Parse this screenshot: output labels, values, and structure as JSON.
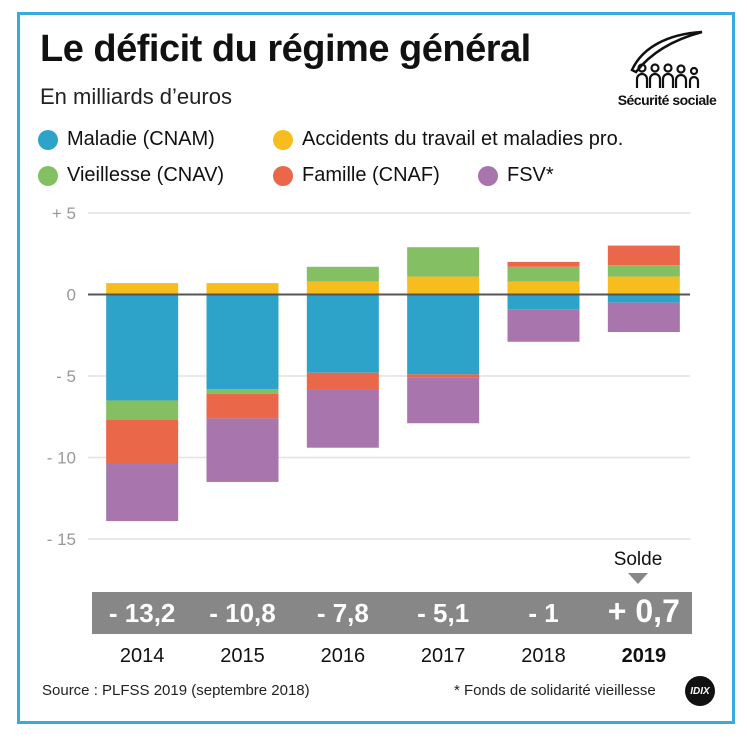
{
  "header": {
    "title": "Le déficit du régime général",
    "subtitle": "En milliards d’euros",
    "logo_label": "Sécurité sociale",
    "logo_icon": "securite-sociale-logo-icon"
  },
  "colors": {
    "frame": "#3aa9dc",
    "Maladie (CNAM)": "#2ea3c9",
    "Accidents du travail et maladies pro.": "#f7bd1f",
    "Vieillesse (CNAV)": "#84bf64",
    "Famille (CNAF)": "#ea6749",
    "FSV*": "#a875ad"
  },
  "chart_data": {
    "type": "bar",
    "stacked": true,
    "title": "Le déficit du régime général",
    "subtitle": "En milliards d’euros",
    "xlabel": "",
    "ylabel": "",
    "categories": [
      "2014",
      "2015",
      "2016",
      "2017",
      "2018",
      "2019"
    ],
    "ylim": [
      -15,
      5
    ],
    "yticks": [
      5,
      0,
      -5,
      -10,
      -15
    ],
    "ytick_labels": [
      "+ 5",
      "0",
      "- 5",
      "- 10",
      "- 15"
    ],
    "grid": true,
    "legend_position": "top",
    "series": [
      {
        "name": "Maladie (CNAM)",
        "color": "#2ea3c9",
        "values": [
          -6.5,
          -5.8,
          -4.8,
          -4.9,
          -0.9,
          -0.5
        ]
      },
      {
        "name": "Accidents du travail et maladies pro.",
        "color": "#f7bd1f",
        "values": [
          0.7,
          0.7,
          0.8,
          1.1,
          0.8,
          1.1
        ]
      },
      {
        "name": "Vieillesse (CNAV)",
        "color": "#84bf64",
        "values": [
          -1.2,
          -0.3,
          0.9,
          1.8,
          0.9,
          0.7
        ]
      },
      {
        "name": "Famille (CNAF)",
        "color": "#ea6749",
        "values": [
          -2.7,
          -1.5,
          -1.0,
          -0.2,
          0.3,
          1.2
        ]
      },
      {
        "name": "FSV*",
        "color": "#a875ad",
        "values": [
          -3.5,
          -3.9,
          -3.6,
          -2.8,
          -2.0,
          -1.8
        ]
      }
    ],
    "solde_label": "Solde",
    "solde": [
      {
        "year": "2014",
        "label": "- 13,2",
        "value": -13.2
      },
      {
        "year": "2015",
        "label": "- 10,8",
        "value": -10.8
      },
      {
        "year": "2016",
        "label": "- 7,8",
        "value": -7.8
      },
      {
        "year": "2017",
        "label": "- 5,1",
        "value": -5.1
      },
      {
        "year": "2018",
        "label": "- 1",
        "value": -1
      },
      {
        "year": "2019",
        "label": "+ 0,7",
        "value": 0.7
      }
    ],
    "highlighted_year": "2019"
  },
  "footer": {
    "source": "Source : PLFSS 2019 (septembre 2018)",
    "note": "* Fonds de solidarité vieillesse",
    "badge": "IDIX"
  }
}
